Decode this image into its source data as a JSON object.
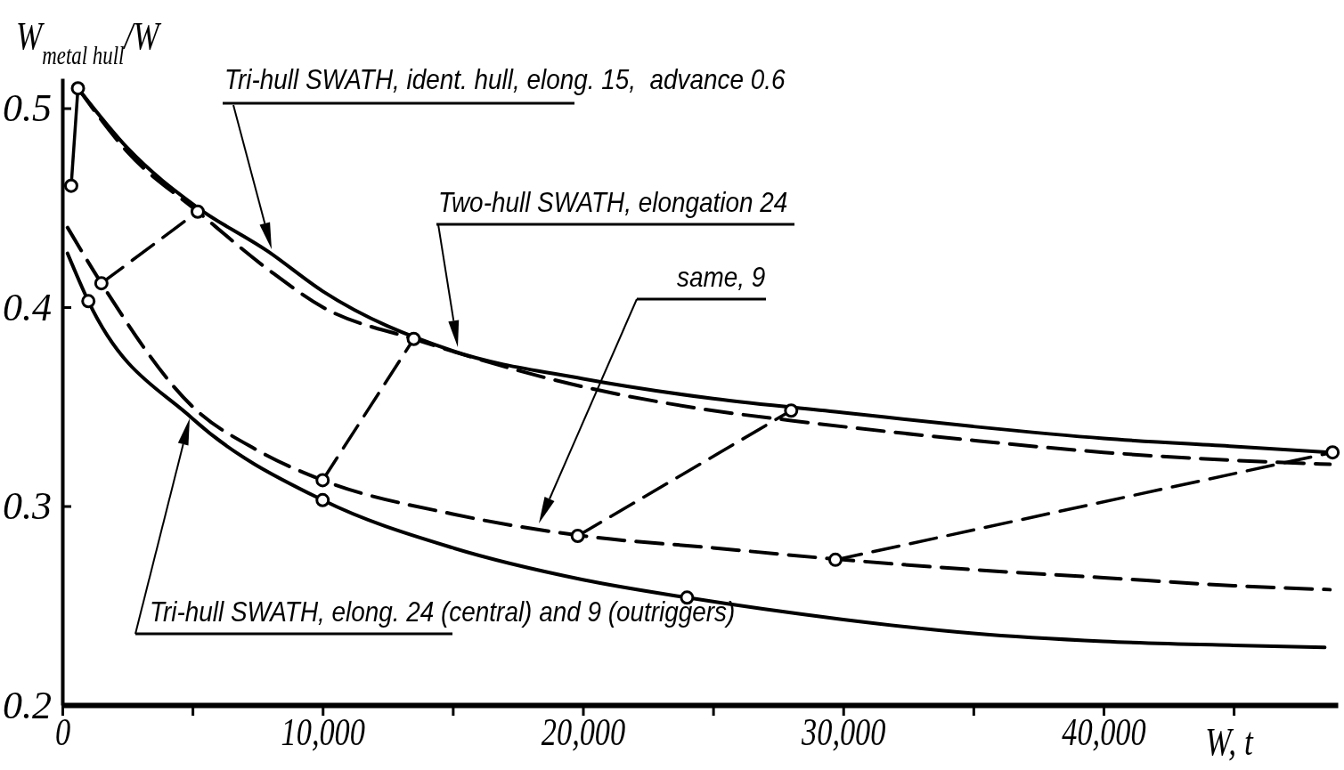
{
  "chart_data": {
    "type": "line",
    "xlabel": "W, t",
    "ylabel": "W$_{metal hull}$/W",
    "xlim": [
      0,
      49000
    ],
    "ylim": [
      0.2,
      0.515
    ],
    "xticks": [
      0,
      {
        "value": 5000,
        "label": null
      },
      {
        "value": 10000,
        "label": "10,000"
      },
      {
        "value": 15000,
        "label": null
      },
      {
        "value": 20000,
        "label": "20,000"
      },
      {
        "value": 25000,
        "label": null
      },
      {
        "value": 30000,
        "label": "30,000"
      },
      {
        "value": 35000,
        "label": null
      },
      {
        "value": 40000,
        "label": "40,000"
      },
      {
        "value": 45000,
        "label": null
      }
    ],
    "yticks": [
      0.2,
      0.3,
      0.4,
      0.5
    ],
    "annotations": [
      "Tri-hull SWATH, ident. hull, elong. 15,  advance 0.6",
      "Two-hull SWATH, elongation 24",
      "same, 9",
      "Tri-hull SWATH, elong. 24 (central) and 9 (outriggers)"
    ],
    "series": [
      {
        "color": "#000000",
        "line_style": "solid",
        "x": [
          600,
          2500,
          5200,
          7900,
          10000,
          15000,
          20000,
          25000,
          30000,
          35000,
          40000,
          45000,
          48700
        ],
        "values": [
          0.51,
          0.48,
          0.45,
          0.428,
          0.408,
          0.378,
          0.364,
          0.354,
          0.347,
          0.34,
          0.334,
          0.33,
          0.327
        ]
      },
      {
        "color": "#000000",
        "line_style": "dashed",
        "x": [
          600,
          2500,
          5200,
          8000,
          10000,
          13500,
          20000,
          25000,
          28000,
          35000,
          40000,
          45000,
          48700
        ],
        "values": [
          0.51,
          0.478,
          0.448,
          0.418,
          0.4,
          0.384,
          0.36,
          0.348,
          0.343,
          0.333,
          0.327,
          0.323,
          0.321
        ]
      },
      {
        "color": "#000000",
        "line_style": "dashed",
        "x": [
          200,
          1500,
          5000,
          7500,
          10000,
          15000,
          20000,
          25000,
          30000,
          35000,
          40000,
          45000,
          48700
        ],
        "values": [
          0.44,
          0.412,
          0.35,
          0.328,
          0.313,
          0.296,
          0.285,
          0.279,
          0.273,
          0.268,
          0.264,
          0.26,
          0.258
        ]
      },
      {
        "color": "#000000",
        "line_style": "solid",
        "x": [
          200,
          1000,
          5000,
          10000,
          15000,
          20000,
          24000,
          30000,
          35000,
          40000,
          45000,
          48500
        ],
        "values": [
          0.427,
          0.403,
          0.344,
          0.303,
          0.279,
          0.263,
          0.254,
          0.243,
          0.236,
          0.232,
          0.23,
          0.229
        ]
      },
      {
        "color": "#000000",
        "line_style": "solid",
        "x": [
          340,
          600
        ],
        "values": [
          0.461,
          0.51
        ]
      },
      {
        "color": "#000000",
        "line_style": "dashed",
        "x": [
          1500,
          5200
        ],
        "values": [
          0.412,
          0.448
        ]
      },
      {
        "color": "#000000",
        "line_style": "dashed",
        "x": [
          10000,
          13500
        ],
        "values": [
          0.313,
          0.384
        ]
      },
      {
        "color": "#000000",
        "line_style": "dashed",
        "x": [
          19800,
          28000
        ],
        "values": [
          0.285,
          0.348
        ]
      },
      {
        "color": "#000000",
        "line_style": "dashed",
        "x": [
          29700,
          48800
        ],
        "values": [
          0.273,
          0.327
        ]
      },
      {
        "type": "scatter",
        "color": "#000000",
        "marker": "circle",
        "x": [
          340,
          600,
          1000,
          1500,
          5200,
          10000,
          10000,
          13500,
          19800,
          24000,
          28000,
          29700,
          48800
        ],
        "values": [
          0.461,
          0.51,
          0.403,
          0.412,
          0.448,
          0.313,
          0.303,
          0.384,
          0.285,
          0.254,
          0.348,
          0.273,
          0.327
        ]
      }
    ]
  }
}
